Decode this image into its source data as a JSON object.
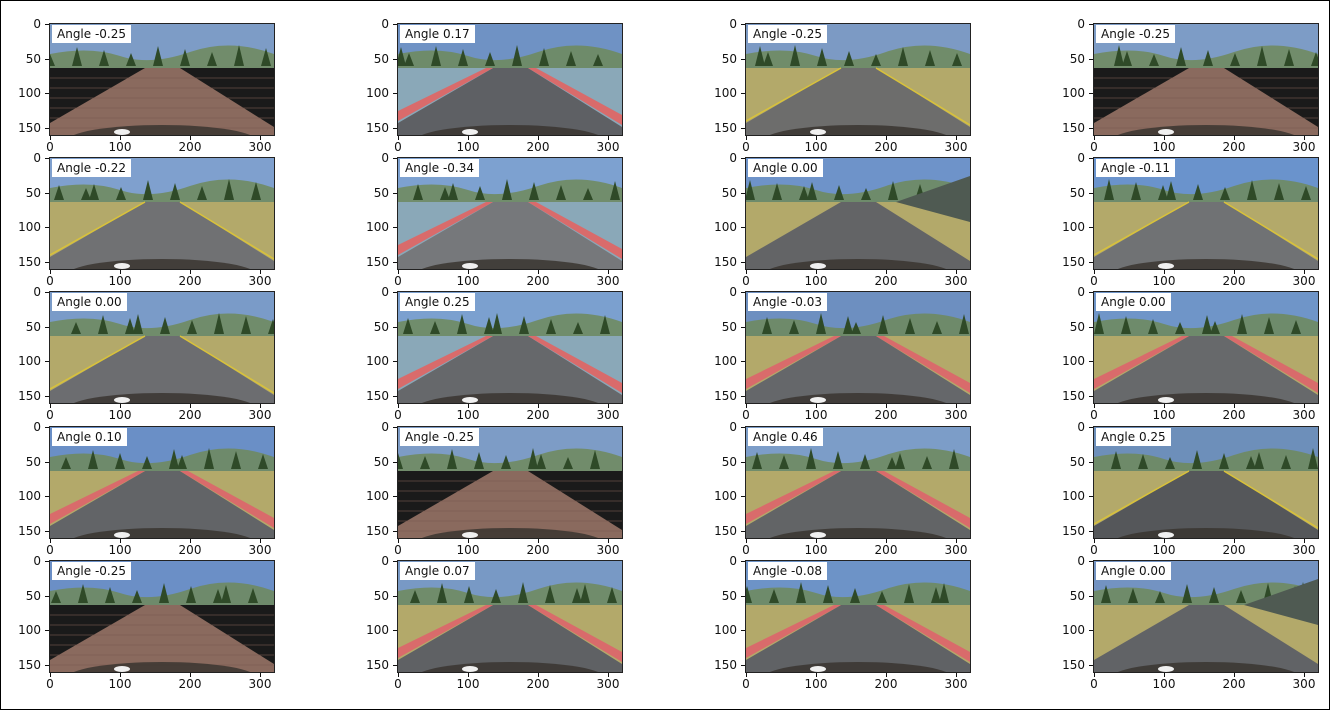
{
  "figure": {
    "y_ticks": [
      "0",
      "50",
      "100",
      "150"
    ],
    "x_ticks": [
      "0",
      "100",
      "200",
      "300"
    ],
    "panels": [
      {
        "label": "Angle -0.25",
        "scene": "cobble",
        "sky": "#7d9cc6",
        "ground": "#8a6a5e"
      },
      {
        "label": "Angle 0.17",
        "scene": "asphalt-water",
        "sky": "#6f92c4",
        "ground": "#5e6064"
      },
      {
        "label": "Angle -0.25",
        "scene": "asphalt-yellow",
        "sky": "#7c9ac4",
        "ground": "#6d6d6c"
      },
      {
        "label": "Angle -0.25",
        "scene": "cobble",
        "sky": "#7d9cc6",
        "ground": "#8a6a5e"
      },
      {
        "label": "Angle -0.22",
        "scene": "asphalt-yellow",
        "sky": "#7fa0ce",
        "ground": "#707173"
      },
      {
        "label": "Angle -0.34",
        "scene": "asphalt-water",
        "sky": "#7da1d0",
        "ground": "#76787b"
      },
      {
        "label": "Angle 0.00",
        "scene": "asphalt-rock",
        "sky": "#6e93c9",
        "ground": "#636466"
      },
      {
        "label": "Angle -0.11",
        "scene": "asphalt-yellow",
        "sky": "#6a93cc",
        "ground": "#707274"
      },
      {
        "label": "Angle 0.00",
        "scene": "asphalt-yellow",
        "sky": "#7a9bc8",
        "ground": "#6c6d70"
      },
      {
        "label": "Angle 0.25",
        "scene": "asphalt-water",
        "sky": "#7ba0cf",
        "ground": "#66686b"
      },
      {
        "label": "Angle -0.03",
        "scene": "asphalt-red",
        "sky": "#6d8fc0",
        "ground": "#65676a"
      },
      {
        "label": "Angle 0.00",
        "scene": "asphalt-red",
        "sky": "#6f95c8",
        "ground": "#67696b"
      },
      {
        "label": "Angle 0.10",
        "scene": "asphalt-red",
        "sky": "#6a8fc6",
        "ground": "#626467"
      },
      {
        "label": "Angle -0.25",
        "scene": "cobble",
        "sky": "#7d9cc6",
        "ground": "#8a6a5e"
      },
      {
        "label": "Angle 0.46",
        "scene": "asphalt-red",
        "sky": "#7c9dc8",
        "ground": "#626466"
      },
      {
        "label": "Angle 0.25",
        "scene": "asphalt-yellow",
        "sky": "#6d8fba",
        "ground": "#55575a"
      },
      {
        "label": "Angle -0.25",
        "scene": "cobble",
        "sky": "#6b8fc6",
        "ground": "#8a6a5e"
      },
      {
        "label": "Angle 0.07",
        "scene": "asphalt-red",
        "sky": "#7899c5",
        "ground": "#5f6164"
      },
      {
        "label": "Angle -0.08",
        "scene": "asphalt-red",
        "sky": "#6d93c7",
        "ground": "#606265"
      },
      {
        "label": "Angle 0.00",
        "scene": "asphalt-rock",
        "sky": "#7393c2",
        "ground": "#616366"
      }
    ]
  }
}
